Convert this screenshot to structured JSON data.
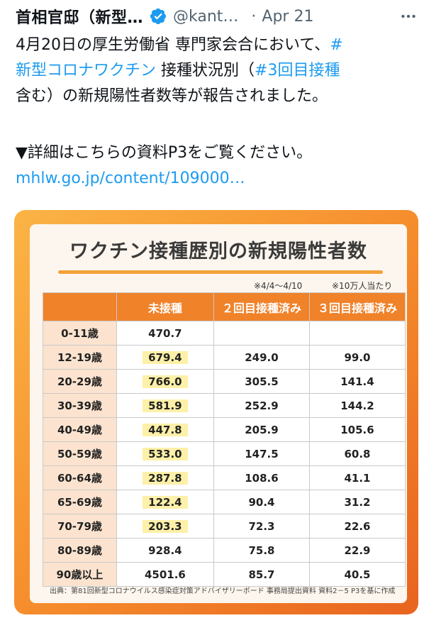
{
  "tweet": {
    "author_name": "首相官邸（新型…",
    "handle": "@kant…",
    "separator": "·",
    "date": "Apr 21",
    "text_lines": [
      {
        "plain": "4月20日の厚生労働省 専門家会合において、",
        "link": "#"
      },
      {
        "link": "新型コロナワクチン",
        "plain": " 接種状況別（",
        "link2": "#3回目接種"
      },
      {
        "plain": "含む）の新規陽性者数等が報告されました。"
      },
      {
        "plain": "▼詳細はこちらの資料P3をご覧ください。"
      },
      {
        "link": "mhlw.go.jp/content/109000…"
      }
    ]
  },
  "card": {
    "title": "ワクチン接種歴別の新規陽性者数",
    "period_note": "※4/4～4/10",
    "unit_note": "※10万人当たり",
    "table": {
      "headers": [
        "",
        "未接種",
        "２回目接種済み",
        "３回目接種済み"
      ],
      "rows": [
        {
          "age": "0-11歳",
          "unvaccinated": "470.7",
          "dose2": "",
          "dose3": ""
        },
        {
          "age": "12-19歳",
          "unvaccinated": "679.4",
          "dose2": "249.0",
          "dose3": "99.0"
        },
        {
          "age": "20-29歳",
          "unvaccinated": "766.0",
          "dose2": "305.5",
          "dose3": "141.4"
        },
        {
          "age": "30-39歳",
          "unvaccinated": "581.9",
          "dose2": "252.9",
          "dose3": "144.2"
        },
        {
          "age": "40-49歳",
          "unvaccinated": "447.8",
          "dose2": "205.9",
          "dose3": "105.6"
        },
        {
          "age": "50-59歳",
          "unvaccinated": "533.0",
          "dose2": "147.5",
          "dose3": "60.8"
        },
        {
          "age": "60-64歳",
          "unvaccinated": "287.8",
          "dose2": "108.6",
          "dose3": "41.1"
        },
        {
          "age": "65-69歳",
          "unvaccinated": "122.4",
          "dose2": "90.4",
          "dose3": "31.2"
        },
        {
          "age": "70-79歳",
          "unvaccinated": "203.3",
          "dose2": "72.3",
          "dose3": "22.6"
        },
        {
          "age": "80-89歳",
          "unvaccinated": "928.4",
          "dose2": "75.8",
          "dose3": "22.9"
        },
        {
          "age": "90歳以上",
          "unvaccinated": "4501.6",
          "dose2": "85.7",
          "dose3": "40.5"
        }
      ]
    },
    "source": "出典：第81回新型コロナウイルス感染症対策アドバイザリーボード 事務局提出資料 資料2－5 P3を基に作成"
  },
  "icons": {
    "verified": "verified-badge-icon",
    "more": "more-icon"
  },
  "colors": {
    "link": "#1d9bf0",
    "header_orange": "#f0822a",
    "age_cell": "#fbe3cf",
    "highlight": "#fdf0a8"
  }
}
